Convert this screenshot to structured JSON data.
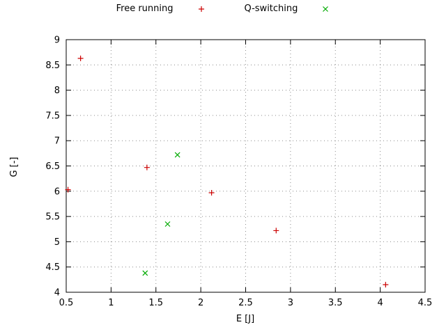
{
  "chart_data": {
    "type": "scatter",
    "title": "",
    "xlabel": "E [J]",
    "ylabel": "G [-]",
    "xlim": [
      0.5,
      4.5
    ],
    "ylim": [
      4,
      9
    ],
    "xticks": [
      0.5,
      1,
      1.5,
      2,
      2.5,
      3,
      3.5,
      4,
      4.5
    ],
    "yticks": [
      4,
      4.5,
      5,
      5.5,
      6,
      6.5,
      7,
      7.5,
      8,
      8.5,
      9
    ],
    "grid": true,
    "grid_style": "dotted",
    "legend_position": "top-center",
    "background_color": "#ffffff",
    "axis_color": "#000000",
    "grid_color": "#8a8a8a",
    "series": [
      {
        "name": "Free running",
        "marker": "plus",
        "color": "#cc0000",
        "points": [
          [
            0.52,
            6.03
          ],
          [
            0.66,
            8.63
          ],
          [
            1.4,
            6.47
          ],
          [
            2.12,
            5.97
          ],
          [
            2.84,
            5.22
          ],
          [
            4.06,
            4.15
          ]
        ]
      },
      {
        "name": "Q-switching",
        "marker": "cross",
        "color": "#00aa00",
        "points": [
          [
            1.38,
            4.38
          ],
          [
            1.63,
            5.35
          ],
          [
            1.74,
            6.72
          ]
        ]
      }
    ]
  }
}
